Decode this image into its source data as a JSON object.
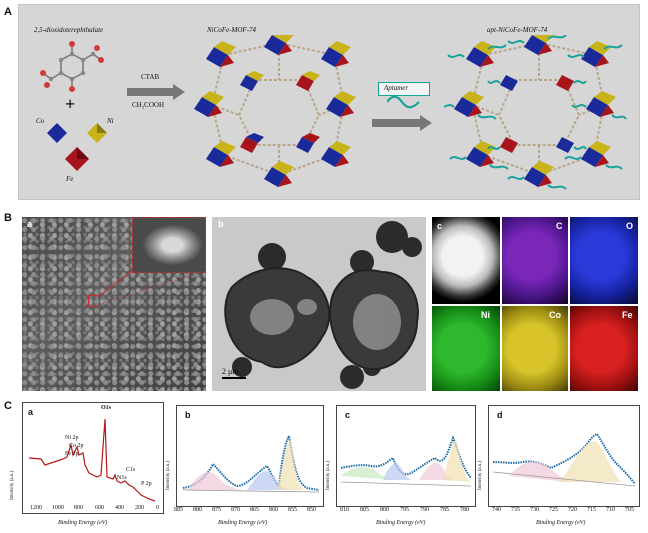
{
  "panel_labels": {
    "a": "A",
    "b": "B",
    "c": "C"
  },
  "schemeA": {
    "linker": "2,5-dioxidoterephthalate",
    "metals": {
      "co": "Co",
      "ni": "Ni",
      "fe": "Fe"
    },
    "plus": "+",
    "reagent1": "CTAB",
    "reagent2": "CH₃COOH",
    "mof1": "NiCoFe-MOF-74",
    "aptamer": "Aptamer",
    "mof2": "apt-NiCoFe-MOF-74"
  },
  "panelB": {
    "a": "a",
    "b": "b",
    "c": "c",
    "scalebar": "2 μm",
    "maps": [
      "C",
      "O",
      "Ni",
      "Co",
      "Fe"
    ]
  },
  "panelC": {
    "sub": [
      "a",
      "b",
      "c",
      "d"
    ],
    "ylabel": "Intensity (a.u.)",
    "xlabel": "Binding Energy (eV)",
    "peaks_a": [
      "Ni 2p",
      "Co 2p",
      "Fe 2p",
      "O1s",
      "N1s",
      "C1s",
      "P 2p"
    ],
    "ticks_a": [
      "1200",
      "1000",
      "800",
      "600",
      "400",
      "200",
      "0"
    ],
    "ticks_b": [
      "885",
      "880",
      "875",
      "870",
      "865",
      "860",
      "855",
      "850"
    ],
    "ticks_c": [
      "810",
      "805",
      "800",
      "795",
      "790",
      "785",
      "780"
    ],
    "ticks_d": [
      "740",
      "735",
      "730",
      "725",
      "720",
      "715",
      "710",
      "705"
    ]
  },
  "colors": {
    "co": "#1a2a9a",
    "ni": "#c8b418",
    "fe": "#a8141c",
    "aptamer": "#1aa39a"
  }
}
